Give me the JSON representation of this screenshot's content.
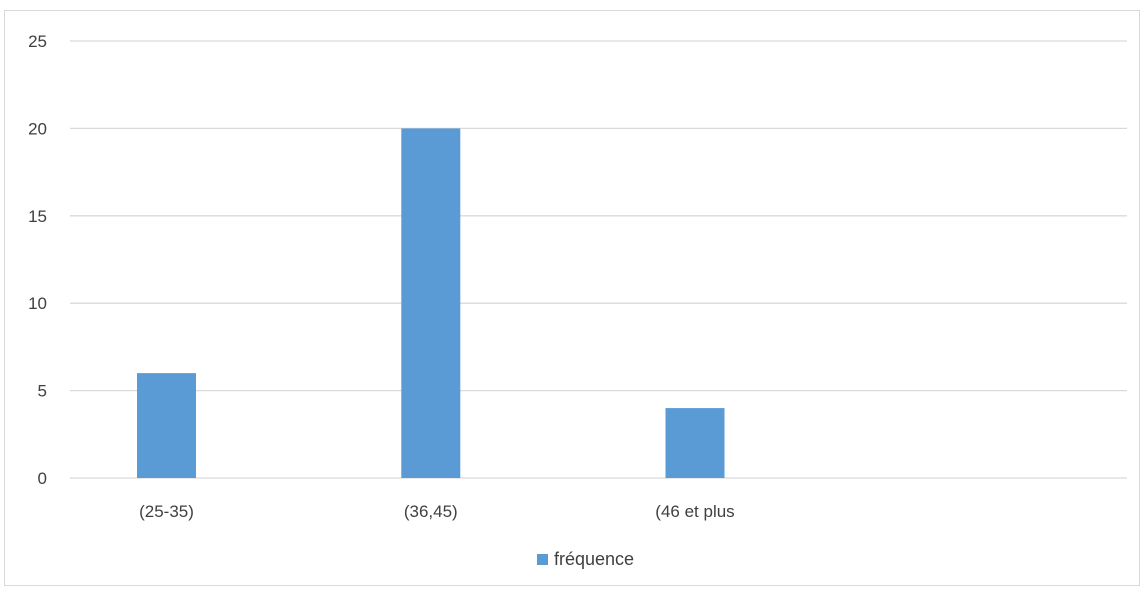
{
  "chart_data": {
    "type": "bar",
    "title": "",
    "xlabel": "",
    "ylabel": "",
    "categories": [
      "(25-35)",
      "(36,45)",
      "(46 et plus",
      ""
    ],
    "series": [
      {
        "name": "fréquence",
        "values": [
          6,
          20,
          4,
          null
        ],
        "color": "#5b9bd5"
      }
    ],
    "ylim": [
      0,
      25
    ],
    "yticks": [
      "0",
      "5",
      "10",
      "15",
      "20",
      "25"
    ],
    "grid": true,
    "legend_position": "bottom"
  },
  "colors": {
    "bar": "#5b9bd5",
    "grid": "#d9d9d9",
    "text": "#404040"
  }
}
